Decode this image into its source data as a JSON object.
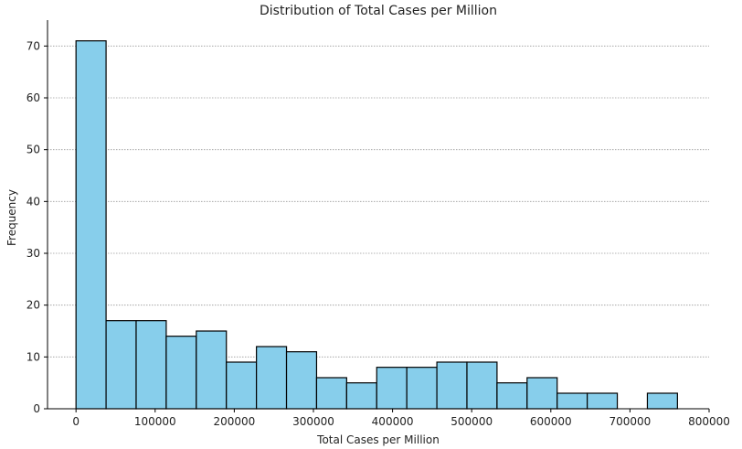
{
  "chart_data": {
    "type": "bar",
    "title": "Distribution of Total Cases per Million",
    "xlabel": "Total Cases per Million",
    "ylabel": "Frequency",
    "bin_edges": [
      0,
      38000,
      76000,
      114000,
      152000,
      190000,
      228000,
      266000,
      304000,
      342000,
      380000,
      418000,
      456000,
      494000,
      532000,
      570000,
      608000,
      646000,
      684000,
      722000,
      760000
    ],
    "values": [
      71,
      17,
      17,
      14,
      15,
      9,
      12,
      11,
      6,
      5,
      8,
      8,
      9,
      9,
      5,
      6,
      3,
      3,
      0,
      3
    ],
    "xlim": [
      -36000,
      800000
    ],
    "ylim": [
      0,
      75
    ],
    "xticks": [
      0,
      100000,
      200000,
      300000,
      400000,
      500000,
      600000,
      700000,
      800000
    ],
    "yticks": [
      0,
      10,
      20,
      30,
      40,
      50,
      60,
      70
    ],
    "grid": "y",
    "bar_color": "#87ceeb",
    "edge_color": "#000000"
  }
}
